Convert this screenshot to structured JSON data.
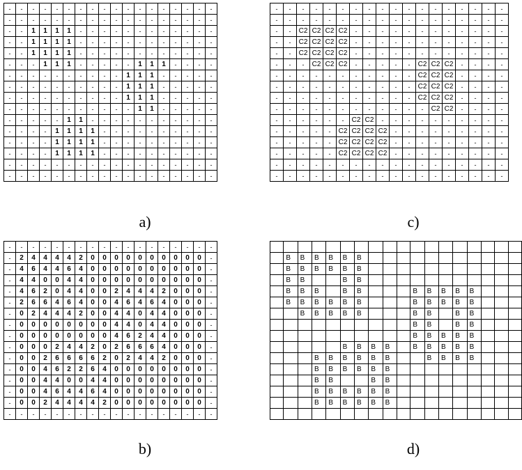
{
  "captions": {
    "a": "a)",
    "b": "b)",
    "c": "c)",
    "d": "d)"
  },
  "grid_a": [
    [
      "-",
      "-",
      "-",
      "-",
      "-",
      "-",
      "-",
      "-",
      "-",
      "-",
      "-",
      "-",
      "-",
      "-",
      "-",
      "-",
      "-",
      "-"
    ],
    [
      "-",
      "-",
      "-",
      "-",
      "-",
      "-",
      "-",
      "-",
      "-",
      "-",
      "-",
      "-",
      "-",
      "-",
      "-",
      "-",
      "-",
      "-"
    ],
    [
      "-",
      "-",
      "1",
      "1",
      "1",
      "1",
      "-",
      "-",
      "-",
      "-",
      "-",
      "-",
      "-",
      "-",
      "-",
      "-",
      "-",
      "-"
    ],
    [
      "-",
      "-",
      "1",
      "1",
      "1",
      "1",
      "-",
      "-",
      "-",
      "-",
      "-",
      "-",
      "-",
      "-",
      "-",
      "-",
      "-",
      "-"
    ],
    [
      "-",
      "-",
      "1",
      "1",
      "1",
      "1",
      "-",
      "-",
      "-",
      "-",
      "-",
      "-",
      "-",
      "-",
      "-",
      "-",
      "-",
      "-"
    ],
    [
      "-",
      "-",
      "-",
      "1",
      "1",
      "1",
      "-",
      "-",
      "-",
      "-",
      "-",
      "1",
      "1",
      "1",
      "-",
      "-",
      "-",
      "-"
    ],
    [
      "-",
      "-",
      "-",
      "-",
      "-",
      "-",
      "-",
      "-",
      "-",
      "-",
      "1",
      "1",
      "1",
      "-",
      "-",
      "-",
      "-",
      "-"
    ],
    [
      "-",
      "-",
      "-",
      "-",
      "-",
      "-",
      "-",
      "-",
      "-",
      "-",
      "1",
      "1",
      "1",
      "-",
      "-",
      "-",
      "-",
      "-"
    ],
    [
      "-",
      "-",
      "-",
      "-",
      "-",
      "-",
      "-",
      "-",
      "-",
      "-",
      "1",
      "1",
      "1",
      "-",
      "-",
      "-",
      "-",
      "-"
    ],
    [
      "-",
      "-",
      "-",
      "-",
      "-",
      "-",
      "-",
      "-",
      "-",
      "-",
      "-",
      "1",
      "1",
      "-",
      "-",
      "-",
      "-",
      "-"
    ],
    [
      "-",
      "-",
      "-",
      "-",
      "-",
      "1",
      "1",
      "-",
      "-",
      "-",
      "-",
      "-",
      "-",
      "-",
      "-",
      "-",
      "-",
      "-"
    ],
    [
      "-",
      "-",
      "-",
      "-",
      "1",
      "1",
      "1",
      "1",
      "-",
      "-",
      "-",
      "-",
      "-",
      "-",
      "-",
      "-",
      "-",
      "-"
    ],
    [
      "-",
      "-",
      "-",
      "-",
      "1",
      "1",
      "1",
      "1",
      "-",
      "-",
      "-",
      "-",
      "-",
      "-",
      "-",
      "-",
      "-",
      "-"
    ],
    [
      "-",
      "-",
      "-",
      "-",
      "1",
      "1",
      "1",
      "1",
      "-",
      "-",
      "-",
      "-",
      "-",
      "-",
      "-",
      "-",
      "-",
      "-"
    ],
    [
      "-",
      "-",
      "-",
      "-",
      "-",
      "-",
      "-",
      "-",
      "-",
      "-",
      "-",
      "-",
      "-",
      "-",
      "-",
      "-",
      "-",
      "-"
    ],
    [
      "-",
      "-",
      "-",
      "-",
      "-",
      "-",
      "-",
      "-",
      "-",
      "-",
      "-",
      "-",
      "-",
      "-",
      "-",
      "-",
      "-",
      "-"
    ]
  ],
  "grid_b": [
    [
      "-",
      "-",
      "-",
      "-",
      "-",
      "-",
      "-",
      "-",
      "-",
      "-",
      "-",
      "-",
      "-",
      "-",
      "-",
      "-",
      "-",
      "-"
    ],
    [
      "-",
      "2",
      "4",
      "4",
      "4",
      "4",
      "2",
      "0",
      "0",
      "0",
      "0",
      "0",
      "0",
      "0",
      "0",
      "0",
      "0",
      "-"
    ],
    [
      "-",
      "4",
      "6",
      "4",
      "4",
      "6",
      "4",
      "0",
      "0",
      "0",
      "0",
      "0",
      "0",
      "0",
      "0",
      "0",
      "0",
      "-"
    ],
    [
      "-",
      "4",
      "4",
      "0",
      "0",
      "4",
      "4",
      "0",
      "0",
      "0",
      "0",
      "0",
      "0",
      "0",
      "0",
      "0",
      "0",
      "-"
    ],
    [
      "-",
      "4",
      "6",
      "2",
      "0",
      "4",
      "4",
      "0",
      "0",
      "2",
      "4",
      "4",
      "4",
      "2",
      "0",
      "0",
      "0",
      "-"
    ],
    [
      "-",
      "2",
      "6",
      "6",
      "4",
      "6",
      "4",
      "0",
      "0",
      "4",
      "6",
      "4",
      "6",
      "4",
      "0",
      "0",
      "0",
      "-"
    ],
    [
      "-",
      "0",
      "2",
      "4",
      "4",
      "4",
      "2",
      "0",
      "0",
      "4",
      "4",
      "0",
      "4",
      "4",
      "0",
      "0",
      "0",
      "-"
    ],
    [
      "-",
      "0",
      "0",
      "0",
      "0",
      "0",
      "0",
      "0",
      "0",
      "4",
      "4",
      "0",
      "4",
      "4",
      "0",
      "0",
      "0",
      "-"
    ],
    [
      "-",
      "0",
      "0",
      "0",
      "0",
      "0",
      "0",
      "0",
      "0",
      "4",
      "6",
      "2",
      "4",
      "4",
      "0",
      "0",
      "0",
      "-"
    ],
    [
      "-",
      "0",
      "0",
      "0",
      "2",
      "4",
      "4",
      "2",
      "0",
      "2",
      "6",
      "6",
      "6",
      "4",
      "0",
      "0",
      "0",
      "-"
    ],
    [
      "-",
      "0",
      "0",
      "2",
      "6",
      "6",
      "6",
      "6",
      "2",
      "0",
      "2",
      "4",
      "4",
      "2",
      "0",
      "0",
      "0",
      "-"
    ],
    [
      "-",
      "0",
      "0",
      "4",
      "6",
      "2",
      "2",
      "6",
      "4",
      "0",
      "0",
      "0",
      "0",
      "0",
      "0",
      "0",
      "0",
      "-"
    ],
    [
      "-",
      "0",
      "0",
      "4",
      "4",
      "0",
      "0",
      "4",
      "4",
      "0",
      "0",
      "0",
      "0",
      "0",
      "0",
      "0",
      "0",
      "-"
    ],
    [
      "-",
      "0",
      "0",
      "4",
      "6",
      "4",
      "4",
      "6",
      "4",
      "0",
      "0",
      "0",
      "0",
      "0",
      "0",
      "0",
      "0",
      "-"
    ],
    [
      "-",
      "0",
      "0",
      "2",
      "4",
      "4",
      "4",
      "4",
      "2",
      "0",
      "0",
      "0",
      "0",
      "0",
      "0",
      "0",
      "0",
      "-"
    ],
    [
      "-",
      "-",
      "-",
      "-",
      "-",
      "-",
      "-",
      "-",
      "-",
      "-",
      "-",
      "-",
      "-",
      "-",
      "-",
      "-",
      "-",
      "-"
    ]
  ],
  "grid_c": [
    [
      "-",
      "-",
      "-",
      "-",
      "-",
      "-",
      "-",
      "-",
      "-",
      "-",
      "-",
      "-",
      "-",
      "-",
      "-",
      "-",
      "-",
      "-"
    ],
    [
      "-",
      "-",
      "-",
      "-",
      "-",
      "-",
      "-",
      "-",
      "-",
      "-",
      "-",
      "-",
      "-",
      "-",
      "-",
      "-",
      "-",
      "-"
    ],
    [
      "-",
      "-",
      "C2",
      "C2",
      "C2",
      "C2",
      "-",
      "-",
      "-",
      "-",
      "-",
      "-",
      "-",
      "-",
      "-",
      "-",
      "-",
      "-"
    ],
    [
      "-",
      "-",
      "C2",
      "C2",
      "C2",
      "C2",
      "-",
      "-",
      "-",
      "-",
      "-",
      "-",
      "-",
      "-",
      "-",
      "-",
      "-",
      "-"
    ],
    [
      "-",
      "-",
      "C2",
      "C2",
      "C2",
      "C2",
      "-",
      "-",
      "-",
      "-",
      "-",
      "-",
      "-",
      "-",
      "-",
      "-",
      "-",
      "-"
    ],
    [
      "-",
      "-",
      "-",
      "C2",
      "C2",
      "C2",
      "-",
      "-",
      "-",
      "-",
      "-",
      "C2",
      "C2",
      "C2",
      "-",
      "-",
      "-",
      "-"
    ],
    [
      "-",
      "-",
      "-",
      "-",
      "-",
      "-",
      "-",
      "-",
      "-",
      "-",
      "-",
      "C2",
      "C2",
      "C2",
      "-",
      "-",
      "-",
      "-"
    ],
    [
      "-",
      "-",
      "-",
      "-",
      "-",
      "-",
      "-",
      "-",
      "-",
      "-",
      "-",
      "C2",
      "C2",
      "C2",
      "-",
      "-",
      "-",
      "-"
    ],
    [
      "-",
      "-",
      "-",
      "-",
      "-",
      "-",
      "-",
      "-",
      "-",
      "-",
      "-",
      "C2",
      "C2",
      "C2",
      "-",
      "-",
      "-",
      "-"
    ],
    [
      "-",
      "-",
      "-",
      "-",
      "-",
      "-",
      "-",
      "-",
      "-",
      "-",
      "-",
      "-",
      "C2",
      "C2",
      "-",
      "-",
      "-",
      "-"
    ],
    [
      "-",
      "-",
      "-",
      "-",
      "-",
      "-",
      "C2",
      "C2",
      "-",
      "-",
      "-",
      "-",
      "-",
      "-",
      "-",
      "-",
      "-",
      "-"
    ],
    [
      "-",
      "-",
      "-",
      "-",
      "-",
      "C2",
      "C2",
      "C2",
      "C2",
      "-",
      "-",
      "-",
      "-",
      "-",
      "-",
      "-",
      "-",
      "-"
    ],
    [
      "-",
      "-",
      "-",
      "-",
      "-",
      "C2",
      "C2",
      "C2",
      "C2",
      "-",
      "-",
      "-",
      "-",
      "-",
      "-",
      "-",
      "-",
      "-"
    ],
    [
      "-",
      "-",
      "-",
      "-",
      "-",
      "C2",
      "C2",
      "C2",
      "C2",
      "-",
      "-",
      "-",
      "-",
      "-",
      "-",
      "-",
      "-",
      "-"
    ],
    [
      "-",
      "-",
      "-",
      "-",
      "-",
      "-",
      "-",
      "-",
      "-",
      "-",
      "-",
      "-",
      "-",
      "-",
      "-",
      "-",
      "-",
      "-"
    ],
    [
      "-",
      "-",
      "-",
      "-",
      "-",
      "-",
      "-",
      "-",
      "-",
      "-",
      "-",
      "-",
      "-",
      "-",
      "-",
      "-",
      "-",
      "-"
    ]
  ],
  "grid_d": [
    [
      "",
      "",
      "",
      "",
      "",
      "",
      "",
      "",
      "",
      "",
      "",
      "",
      "",
      "",
      "",
      "",
      "",
      ""
    ],
    [
      "",
      "B",
      "B",
      "B",
      "B",
      "B",
      "B",
      "",
      "",
      "",
      "",
      "",
      "",
      "",
      "",
      "",
      "",
      ""
    ],
    [
      "",
      "B",
      "B",
      "B",
      "B",
      "B",
      "B",
      "",
      "",
      "",
      "",
      "",
      "",
      "",
      "",
      "",
      "",
      ""
    ],
    [
      "",
      "B",
      "B",
      "",
      "",
      "B",
      "B",
      "",
      "",
      "",
      "",
      "",
      "",
      "",
      "",
      "",
      "",
      ""
    ],
    [
      "",
      "B",
      "B",
      "B",
      "",
      "B",
      "B",
      "",
      "",
      "",
      "B",
      "B",
      "B",
      "B",
      "B",
      "",
      "",
      ""
    ],
    [
      "",
      "B",
      "B",
      "B",
      "B",
      "B",
      "B",
      "",
      "",
      "",
      "B",
      "B",
      "B",
      "B",
      "B",
      "",
      "",
      ""
    ],
    [
      "",
      "",
      "B",
      "B",
      "B",
      "B",
      "B",
      "",
      "",
      "",
      "B",
      "B",
      "",
      "B",
      "B",
      "",
      "",
      ""
    ],
    [
      "",
      "",
      "",
      "",
      "",
      "",
      "",
      "",
      "",
      "",
      "B",
      "B",
      "",
      "B",
      "B",
      "",
      "",
      ""
    ],
    [
      "",
      "",
      "",
      "",
      "",
      "",
      "",
      "",
      "",
      "",
      "B",
      "B",
      "B",
      "B",
      "B",
      "",
      "",
      ""
    ],
    [
      "",
      "",
      "",
      "",
      "",
      "B",
      "B",
      "B",
      "B",
      "",
      "B",
      "B",
      "B",
      "B",
      "B",
      "",
      "",
      ""
    ],
    [
      "",
      "",
      "",
      "B",
      "B",
      "B",
      "B",
      "B",
      "B",
      "",
      "",
      "B",
      "B",
      "B",
      "B",
      "",
      "",
      ""
    ],
    [
      "",
      "",
      "",
      "B",
      "B",
      "B",
      "B",
      "B",
      "B",
      "",
      "",
      "",
      "",
      "",
      "",
      "",
      "",
      ""
    ],
    [
      "",
      "",
      "",
      "B",
      "B",
      "",
      "",
      "B",
      "B",
      "",
      "",
      "",
      "",
      "",
      "",
      "",
      "",
      ""
    ],
    [
      "",
      "",
      "",
      "B",
      "B",
      "B",
      "B",
      "B",
      "B",
      "",
      "",
      "",
      "",
      "",
      "",
      "",
      "",
      ""
    ],
    [
      "",
      "",
      "",
      "B",
      "B",
      "B",
      "B",
      "B",
      "B",
      "",
      "",
      "",
      "",
      "",
      "",
      "",
      "",
      ""
    ],
    [
      "",
      "",
      "",
      "",
      "",
      "",
      "",
      "",
      "",
      "",
      "",
      "",
      "",
      "",
      "",
      "",
      "",
      ""
    ]
  ]
}
